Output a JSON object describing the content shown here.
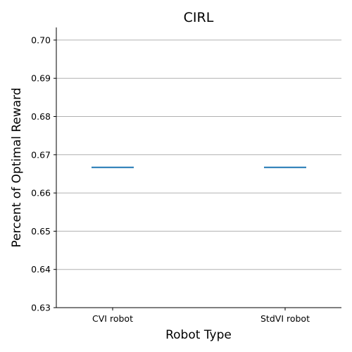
{
  "chart_data": {
    "type": "box",
    "title": "CIRL",
    "xlabel": "Robot Type",
    "ylabel": "Percent of Optimal Reward",
    "categories": [
      "CVI robot",
      "StdVI robot"
    ],
    "values": [
      0.6667,
      0.6667
    ],
    "ylim": [
      0.63,
      0.7033
    ],
    "yticks": [
      "0.63",
      "0.64",
      "0.65",
      "0.66",
      "0.67",
      "0.68",
      "0.69",
      "0.70"
    ],
    "grid": "horizontal",
    "series_color": "#1f77b4"
  }
}
